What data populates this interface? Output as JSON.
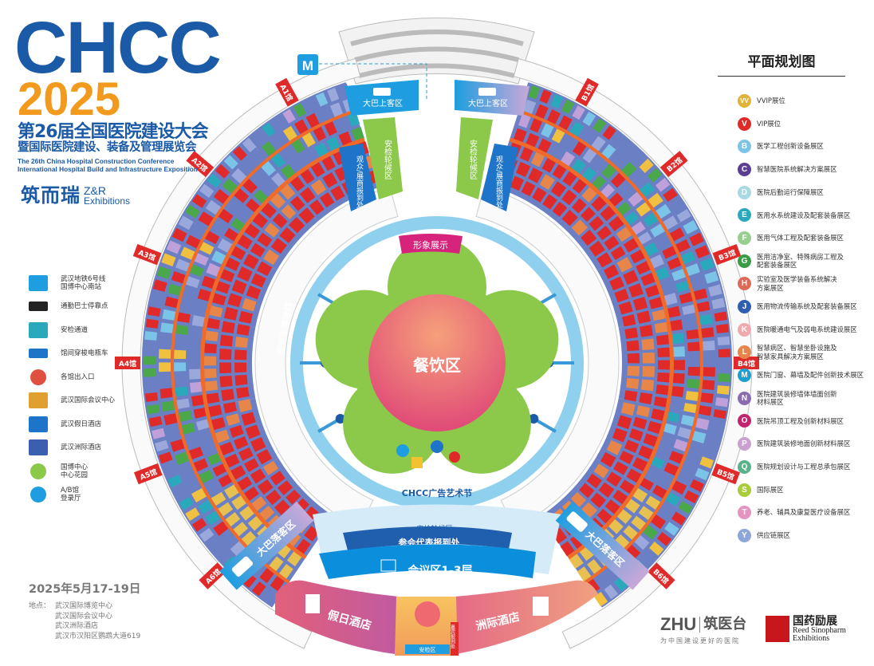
{
  "header": {
    "logo_text": "CHCC",
    "year": "2025",
    "title_cn_line1": "第26届全国医院建设大会",
    "title_cn_line2": "暨国际医院建设、装备及管理展览会",
    "title_en_line1": "The 26th China Hospital Construction Conference",
    "title_en_line2": "International Hospital Build and Infrastructure Exposition",
    "organizer_cn": "筑而瑞",
    "organizer_en1": "Z&R",
    "organizer_en2": "Exhibitions"
  },
  "legend_left": [
    {
      "icon": "metro-icon",
      "label": "武汉地铁6号线\n国博中心南站"
    },
    {
      "icon": "bus-icon",
      "label": "通勤巴士停靠点"
    },
    {
      "icon": "security-gate-icon",
      "label": "安检通道"
    },
    {
      "icon": "shuttle-cart-icon",
      "label": "馆间穿梭电瓶车"
    },
    {
      "icon": "entrance-icon",
      "label": "各馆出入口"
    },
    {
      "icon": "conference-center-icon",
      "label": "武汉国际会议中心"
    },
    {
      "icon": "holiday-hotel-icon",
      "label": "武汉假日酒店"
    },
    {
      "icon": "intercontinental-hotel-icon",
      "label": "武汉洲际酒店"
    },
    {
      "icon": "garden-icon",
      "label": "国博中心\n中心花园"
    },
    {
      "icon": "registration-hall-icon",
      "label": "A/B馆\n登录厅"
    }
  ],
  "legend_right": {
    "title": "平面规划图",
    "items": [
      {
        "code": "VV",
        "label": "VVIP展位",
        "color": "#e0b43c"
      },
      {
        "code": "V",
        "label": "VIP展位",
        "color": "#e02a2a"
      },
      {
        "code": "B",
        "label": "医学工程创新设备展区",
        "color": "#7cc3e8"
      },
      {
        "code": "C",
        "label": "智慧医院系统解决方案展区",
        "color": "#5b3f95"
      },
      {
        "code": "D",
        "label": "医院后勤运行保障展区",
        "color": "#a9d9e2"
      },
      {
        "code": "E",
        "label": "医用水系统建设及配套装备展区",
        "color": "#2aa9bd"
      },
      {
        "code": "F",
        "label": "医用气体工程及配套装备展区",
        "color": "#97cf8f"
      },
      {
        "code": "G",
        "label": "医用洁净室、特殊病房工程及\n配套装备展区",
        "color": "#3a9d45"
      },
      {
        "code": "H",
        "label": "实验室及医学装备系统解决\n方案展区",
        "color": "#e06a5a"
      },
      {
        "code": "J",
        "label": "医用物流传输系统及配套装备展区",
        "color": "#2f5fae"
      },
      {
        "code": "K",
        "label": "医院暖通电气及弱电系统建设展区",
        "color": "#efaab0"
      },
      {
        "code": "L",
        "label": "智慧病区、智慧坐卧设施及\n智慧家具解决方案展区",
        "color": "#e8864a"
      },
      {
        "code": "M",
        "label": "医院门窗、幕墙及配件创新技术展区",
        "color": "#1d9fd0"
      },
      {
        "code": "N",
        "label": "医院建筑装修墙体墙面创新\n材料展区",
        "color": "#8a6db0"
      },
      {
        "code": "O",
        "label": "医院吊顶工程及创新材料展区",
        "color": "#c2256e"
      },
      {
        "code": "P",
        "label": "医院建筑装修地面创新材料展区",
        "color": "#c9a0d0"
      },
      {
        "code": "Q",
        "label": "医院规划设计与工程总承包展区",
        "color": "#5ab28a"
      },
      {
        "code": "S",
        "label": "国际展区",
        "color": "#a8cc3c"
      },
      {
        "code": "T",
        "label": "养老、辅具及康复医疗设备展区",
        "color": "#e394c0"
      },
      {
        "code": "Y",
        "label": "供应链展区",
        "color": "#8ea7da"
      }
    ]
  },
  "map": {
    "halls_a": [
      "A1馆",
      "A2馆",
      "A3馆",
      "A4馆",
      "A5馆",
      "A6馆"
    ],
    "halls_b": [
      "B1馆",
      "B2馆",
      "B3馆",
      "B4馆",
      "B5馆",
      "B6馆"
    ],
    "bus_pickup": "大巴上客区",
    "bus_dropoff": "大巴落客区",
    "security_wait": "安检轮候区",
    "visitor_registration": "观众/展商报到处",
    "image_display": "形象展示",
    "dining": "餐饮区",
    "shuttle_ring": "观光车摆渡线",
    "ad_festival": "CHCC广告艺术节",
    "delegate_registration": "参会代表报到处",
    "conference_area": "会议区1-3层",
    "holiday_hotel": "假日酒店",
    "intercontinental_hotel": "洲际酒店",
    "security_area": "安检区",
    "guest_registration": "嘉宾报到处"
  },
  "footer": {
    "date": "2025年5月17-19日",
    "venue_label": "地点：",
    "venues": [
      "武汉国际博览中心",
      "武汉国际会议中心",
      "武汉洲际酒店",
      "武汉市汉阳区鹦鹉大道619"
    ],
    "sponsor1_logo": "ZHU",
    "sponsor1_cn": "筑医台",
    "sponsor1_slogan": "为中国建设更好的医院",
    "sponsor2_cn": "国药励展",
    "sponsor2_en1": "Reed Sinopharm",
    "sponsor2_en2": "Exhibitions"
  }
}
